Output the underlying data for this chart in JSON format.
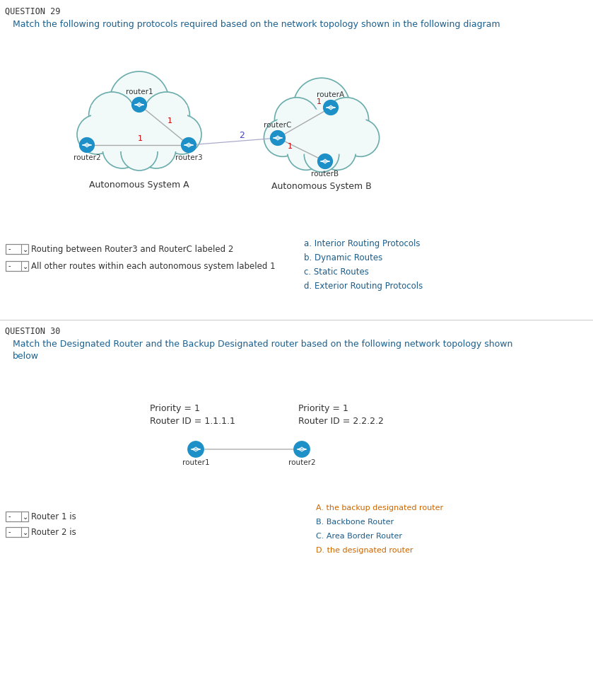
{
  "bg_color": "#ffffff",
  "q29_title": "QUESTION 29",
  "q29_desc": "Match the following routing protocols required based on the network topology shown in the following diagram",
  "q30_title": "QUESTION 30",
  "q30_desc_line1": "Match the Designated Router and the Backup Designated router based on the following network topology shown",
  "q30_desc_line2": "below",
  "text_color_dark": "#333333",
  "text_color_darkgray": "#555555",
  "text_color_blue_desc": "#1a6090",
  "text_color_orange": "#cc6600",
  "text_color_blue_ans": "#1a5c8a",
  "text_color_red_label": "#cc0000",
  "text_color_blue_label": "#4444bb",
  "router_color": "#1e90c8",
  "cloud_edge": "#6aacac",
  "cloud_fill": "#f2f9f9",
  "line_color": "#aaaaaa",
  "divider_color": "#cccccc",
  "dropdown_edge": "#888888",
  "q29_answers_a": "a. Interior Routing Protocols",
  "q29_answers_b": "b. Dynamic Routes",
  "q29_answers_c": "c. Static Routes",
  "q29_answers_d": "d. Exterior Routing Protocols",
  "q29_q1": "Routing between Router3 and RouterC labeled 2",
  "q29_q2": "All other routes within each autonomous system labeled 1",
  "q30_router1_priority": "Priority = 1",
  "q30_router1_id": "Router ID = 1.1.1.1",
  "q30_router2_priority": "Priority = 1",
  "q30_router2_id": "Router ID = 2.2.2.2",
  "q30_answers_a": "A. the backup designated router",
  "q30_answers_b": "B. Backbone Router",
  "q30_answers_c": "C. Area Border Router",
  "q30_answers_d": "D. the designated router",
  "q30_q1": "Router 1 is",
  "q30_q2": "Router 2 is",
  "sys_a_label": "Autonomous System A",
  "sys_b_label": "Autonomous System B"
}
